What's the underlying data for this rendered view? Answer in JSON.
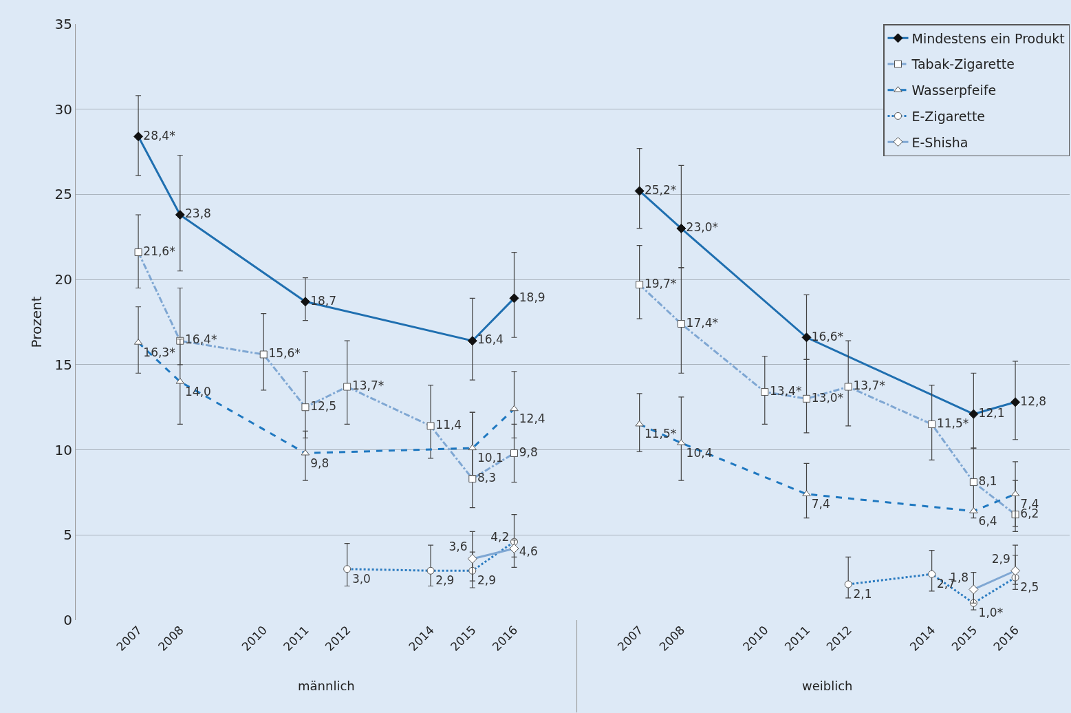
{
  "chart_data": {
    "type": "line",
    "ylabel": "Prozent",
    "categories": [
      "2007",
      "2008",
      null,
      "2010",
      "2011",
      "2012",
      null,
      "2014",
      "2015",
      "2016",
      null,
      null,
      "2007",
      "2008",
      null,
      "2010",
      "2011",
      "2012",
      null,
      "2014",
      "2015",
      "2016"
    ],
    "ylim": [
      0,
      35
    ],
    "yticks": [
      0,
      5,
      10,
      15,
      20,
      25,
      30,
      35
    ],
    "grid": "y",
    "legend": "top right",
    "annotations": [
      "männlich",
      "weiblich"
    ],
    "series": [
      {
        "name": "Mindestens ein Produkt",
        "color": "#1f6fb0",
        "line_style": "solid",
        "marker": "diamond",
        "values": [
          28.4,
          23.8,
          null,
          null,
          18.7,
          null,
          null,
          null,
          16.4,
          18.9,
          null,
          null,
          25.2,
          23.0,
          null,
          null,
          16.6,
          null,
          null,
          null,
          12.1,
          12.8
        ],
        "value_labels": [
          "28,4*",
          "23,8",
          null,
          null,
          "18,7",
          null,
          null,
          null,
          "16,4",
          "18,9",
          null,
          null,
          "25,2*",
          "23,0*",
          null,
          null,
          "16,6*",
          null,
          null,
          null,
          "12,1",
          "12,8"
        ],
        "errors": [
          [
            26.1,
            30.8
          ],
          [
            20.5,
            27.3
          ],
          null,
          null,
          [
            17.6,
            20.1
          ],
          null,
          null,
          null,
          [
            14.1,
            18.9
          ],
          [
            16.6,
            21.6
          ],
          null,
          null,
          [
            23.0,
            27.7
          ],
          [
            20.7,
            26.7
          ],
          null,
          null,
          [
            15.3,
            19.1
          ],
          null,
          null,
          null,
          [
            10.1,
            14.5
          ],
          [
            10.6,
            15.2
          ]
        ]
      },
      {
        "name": "Tabak-Zigarette",
        "color": "#7fa7d3",
        "line_style": "dashdot",
        "marker": "square",
        "values": [
          21.6,
          16.4,
          null,
          15.6,
          12.5,
          13.7,
          null,
          11.4,
          8.3,
          9.8,
          null,
          null,
          19.7,
          17.4,
          null,
          13.4,
          13.0,
          13.7,
          null,
          11.5,
          8.1,
          6.2
        ],
        "value_labels": [
          "21,6*",
          "16,4*",
          null,
          "15,6*",
          "12,5",
          "13,7*",
          null,
          "11,4",
          "8,3",
          "9,8",
          null,
          null,
          "19,7*",
          "17,4*",
          null,
          "13,4*",
          "13,0*",
          "13,7*",
          null,
          "11,5*",
          "8,1",
          "6,2"
        ],
        "errors": [
          [
            19.5,
            23.8
          ],
          [
            15.0,
            19.5
          ],
          null,
          [
            13.5,
            18.0
          ],
          [
            10.7,
            14.6
          ],
          [
            11.5,
            16.4
          ],
          null,
          [
            9.5,
            13.8
          ],
          [
            6.6,
            12.2
          ],
          [
            8.1,
            11.5
          ],
          null,
          null,
          [
            17.7,
            22.0
          ],
          [
            14.5,
            20.7
          ],
          null,
          [
            11.5,
            15.5
          ],
          [
            11.0,
            15.3
          ],
          [
            11.4,
            16.4
          ],
          null,
          [
            9.4,
            13.8
          ],
          [
            6.0,
            10.1
          ],
          [
            5.2,
            8.2
          ]
        ]
      },
      {
        "name": "Wasserpfeife",
        "color": "#1f78c0",
        "line_style": "dashed",
        "marker": "triangle",
        "values": [
          16.3,
          14.0,
          null,
          null,
          9.8,
          null,
          null,
          null,
          10.1,
          12.4,
          null,
          null,
          11.5,
          10.4,
          null,
          null,
          7.4,
          null,
          null,
          null,
          6.4,
          7.4
        ],
        "value_labels": [
          "16,3*",
          "14,0",
          null,
          null,
          "9,8",
          null,
          null,
          null,
          "10,1",
          "12,4",
          null,
          null,
          "11,5*",
          "10,4",
          null,
          null,
          "7,4",
          null,
          null,
          null,
          "6,4",
          "7,4"
        ],
        "errors": [
          [
            14.5,
            18.4
          ],
          [
            11.5,
            16.5
          ],
          null,
          null,
          [
            8.2,
            11.1
          ],
          null,
          null,
          null,
          [
            8.5,
            12.2
          ],
          [
            10.7,
            14.6
          ],
          null,
          null,
          [
            9.9,
            13.3
          ],
          [
            8.2,
            13.1
          ],
          null,
          null,
          [
            6.0,
            9.2
          ],
          null,
          null,
          null,
          null,
          [
            5.5,
            9.3
          ]
        ]
      },
      {
        "name": "E-Zigarette",
        "color": "#2b7bc0",
        "line_style": "dotted",
        "marker": "circle",
        "values": [
          null,
          null,
          null,
          null,
          null,
          3.0,
          null,
          2.9,
          2.9,
          4.6,
          null,
          null,
          null,
          null,
          null,
          null,
          null,
          2.1,
          null,
          2.7,
          1.0,
          2.5
        ],
        "value_labels": [
          null,
          null,
          null,
          null,
          null,
          "3,0",
          null,
          "2,9",
          "2,9",
          "4,6",
          null,
          null,
          null,
          null,
          null,
          null,
          null,
          "2,1",
          null,
          "2,7",
          "1,0*",
          "2,5"
        ],
        "errors": [
          null,
          null,
          null,
          null,
          null,
          [
            2.0,
            4.5
          ],
          null,
          [
            2.0,
            4.4
          ],
          [
            1.9,
            4.0
          ],
          [
            3.7,
            6.2
          ],
          null,
          null,
          null,
          null,
          null,
          null,
          null,
          [
            1.3,
            3.7
          ],
          null,
          [
            1.7,
            4.1
          ],
          [
            0.6,
            1.7
          ],
          [
            1.8,
            3.8
          ]
        ]
      },
      {
        "name": "E-Shisha",
        "color": "#7fa7d3",
        "line_style": "solid",
        "marker": "diamond",
        "values": [
          null,
          null,
          null,
          null,
          null,
          null,
          null,
          null,
          3.6,
          4.2,
          null,
          null,
          null,
          null,
          null,
          null,
          null,
          null,
          null,
          null,
          1.8,
          2.9
        ],
        "value_labels": [
          null,
          null,
          null,
          null,
          null,
          null,
          null,
          null,
          "3,6",
          "4,2",
          null,
          null,
          null,
          null,
          null,
          null,
          null,
          null,
          null,
          null,
          "1,8",
          "2,9"
        ],
        "errors": [
          null,
          null,
          null,
          null,
          null,
          null,
          null,
          null,
          [
            2.3,
            5.2
          ],
          [
            3.1,
            4.7
          ],
          null,
          null,
          null,
          null,
          null,
          null,
          null,
          null,
          null,
          null,
          [
            1.0,
            2.8
          ],
          [
            2.1,
            4.4
          ]
        ]
      }
    ]
  }
}
